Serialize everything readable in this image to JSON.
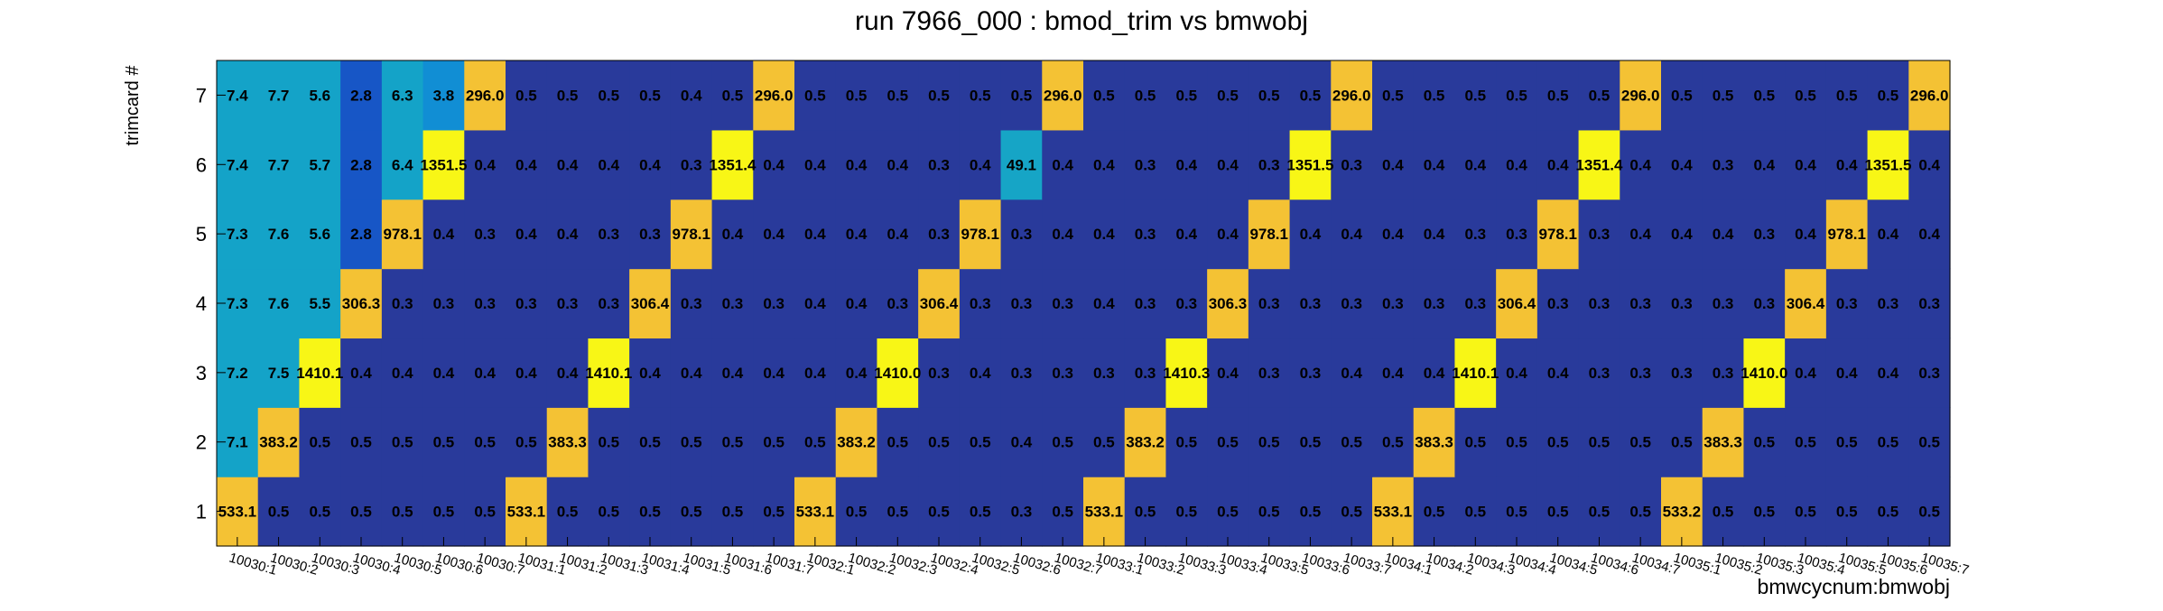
{
  "chart_data": {
    "type": "heatmap",
    "title": "run 7966_000 : bmod_trim vs bmwobj",
    "xlabel": "bmwcycnum:bmwobj",
    "ylabel": "trimcard #",
    "x": [
      "10030:1",
      "10030:2",
      "10030:3",
      "10030:4",
      "10030:5",
      "10030:6",
      "10030:7",
      "10031:1",
      "10031:2",
      "10031:3",
      "10031:4",
      "10031:5",
      "10031:6",
      "10031:7",
      "10032:1",
      "10032:2",
      "10032:3",
      "10032:4",
      "10032:5",
      "10032:6",
      "10032:7",
      "10033:1",
      "10033:2",
      "10033:3",
      "10033:4",
      "10033:5",
      "10033:6",
      "10033:7",
      "10034:1",
      "10034:2",
      "10034:3",
      "10034:4",
      "10034:5",
      "10034:6",
      "10034:7",
      "10035:1",
      "10035:2",
      "10035:3",
      "10035:4",
      "10035:5",
      "10035:6",
      "10035:7"
    ],
    "y": [
      "1",
      "2",
      "3",
      "4",
      "5",
      "6",
      "7"
    ],
    "values": [
      [
        "533.1",
        "0.5",
        "0.5",
        "0.5",
        "0.5",
        "0.5",
        "0.5",
        "533.1",
        "0.5",
        "0.5",
        "0.5",
        "0.5",
        "0.5",
        "0.5",
        "533.1",
        "0.5",
        "0.5",
        "0.5",
        "0.5",
        "0.3",
        "0.5",
        "533.1",
        "0.5",
        "0.5",
        "0.5",
        "0.5",
        "0.5",
        "0.5",
        "533.1",
        "0.5",
        "0.5",
        "0.5",
        "0.5",
        "0.5",
        "0.5",
        "533.2",
        "0.5",
        "0.5",
        "0.5",
        "0.5",
        "0.5",
        "0.5"
      ],
      [
        "7.1",
        "383.2",
        "0.5",
        "0.5",
        "0.5",
        "0.5",
        "0.5",
        "0.5",
        "383.3",
        "0.5",
        "0.5",
        "0.5",
        "0.5",
        "0.5",
        "0.5",
        "383.2",
        "0.5",
        "0.5",
        "0.5",
        "0.4",
        "0.5",
        "0.5",
        "383.2",
        "0.5",
        "0.5",
        "0.5",
        "0.5",
        "0.5",
        "0.5",
        "383.3",
        "0.5",
        "0.5",
        "0.5",
        "0.5",
        "0.5",
        "0.5",
        "383.3",
        "0.5",
        "0.5",
        "0.5",
        "0.5",
        "0.5"
      ],
      [
        "7.2",
        "7.5",
        "1410.1",
        "0.4",
        "0.4",
        "0.4",
        "0.4",
        "0.4",
        "0.4",
        "1410.1",
        "0.4",
        "0.4",
        "0.4",
        "0.4",
        "0.4",
        "0.4",
        "1410.0",
        "0.3",
        "0.4",
        "0.3",
        "0.3",
        "0.3",
        "0.3",
        "1410.3",
        "0.4",
        "0.3",
        "0.3",
        "0.4",
        "0.4",
        "0.4",
        "1410.1",
        "0.4",
        "0.4",
        "0.3",
        "0.3",
        "0.3",
        "0.3",
        "1410.0",
        "0.4",
        "0.4",
        "0.4",
        "0.3"
      ],
      [
        "7.3",
        "7.6",
        "5.5",
        "306.3",
        "0.3",
        "0.3",
        "0.3",
        "0.3",
        "0.3",
        "0.3",
        "306.4",
        "0.3",
        "0.3",
        "0.3",
        "0.4",
        "0.4",
        "0.3",
        "306.4",
        "0.3",
        "0.3",
        "0.3",
        "0.4",
        "0.3",
        "0.3",
        "306.3",
        "0.3",
        "0.3",
        "0.3",
        "0.3",
        "0.3",
        "0.3",
        "306.4",
        "0.3",
        "0.3",
        "0.3",
        "0.3",
        "0.3",
        "0.3",
        "306.4",
        "0.3",
        "0.3",
        "0.3"
      ],
      [
        "7.3",
        "7.6",
        "5.6",
        "2.8",
        "978.1",
        "0.4",
        "0.3",
        "0.4",
        "0.4",
        "0.3",
        "0.3",
        "978.1",
        "0.4",
        "0.4",
        "0.4",
        "0.4",
        "0.4",
        "0.3",
        "978.1",
        "0.3",
        "0.4",
        "0.4",
        "0.3",
        "0.4",
        "0.4",
        "978.1",
        "0.4",
        "0.4",
        "0.4",
        "0.4",
        "0.3",
        "0.3",
        "978.1",
        "0.3",
        "0.4",
        "0.4",
        "0.4",
        "0.3",
        "0.4",
        "978.1",
        "0.4",
        "0.4"
      ],
      [
        "7.4",
        "7.7",
        "5.7",
        "2.8",
        "6.4",
        "1351.5",
        "0.4",
        "0.4",
        "0.4",
        "0.4",
        "0.4",
        "0.3",
        "1351.4",
        "0.4",
        "0.4",
        "0.4",
        "0.4",
        "0.3",
        "0.4",
        "49.1",
        "0.4",
        "0.4",
        "0.3",
        "0.4",
        "0.4",
        "0.3",
        "1351.5",
        "0.3",
        "0.4",
        "0.4",
        "0.4",
        "0.4",
        "0.4",
        "1351.4",
        "0.4",
        "0.4",
        "0.3",
        "0.4",
        "0.4",
        "0.4",
        "1351.5",
        "0.4"
      ],
      [
        "7.4",
        "7.7",
        "5.6",
        "2.8",
        "6.3",
        "3.8",
        "296.0",
        "0.5",
        "0.5",
        "0.5",
        "0.5",
        "0.4",
        "0.5",
        "296.0",
        "0.5",
        "0.5",
        "0.5",
        "0.5",
        "0.5",
        "0.5",
        "296.0",
        "0.5",
        "0.5",
        "0.5",
        "0.5",
        "0.5",
        "0.5",
        "296.0",
        "0.5",
        "0.5",
        "0.5",
        "0.5",
        "0.5",
        "0.5",
        "296.0",
        "0.5",
        "0.5",
        "0.5",
        "0.5",
        "0.5",
        "0.5",
        "296.0"
      ]
    ],
    "colormap": {
      "levels": [
        0.35,
        1.0,
        3.2,
        4.5,
        10,
        60,
        200,
        1000
      ],
      "colors": [
        "#293a9b",
        "#1756c6",
        "#118ed4",
        "#14a3c8",
        "#16a5c6",
        "#8bba6a",
        "#f4c234",
        "#f8f616"
      ]
    },
    "grid": false
  }
}
